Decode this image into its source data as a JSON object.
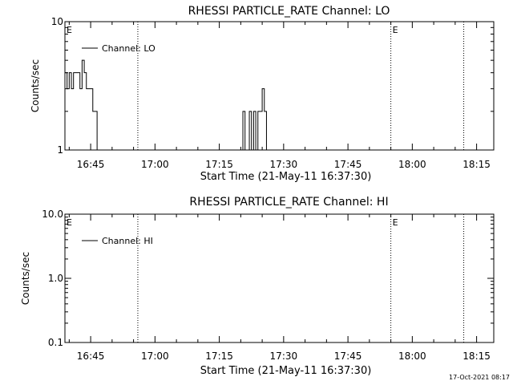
{
  "timestamp": "17-Oct-2021 08:17",
  "chart_data": [
    {
      "type": "line",
      "title": "RHESSI PARTICLE_RATE Channel: LO",
      "xlabel": "Start Time (21-May-11 16:37:30)",
      "ylabel": "Counts/sec",
      "y_scale": "log",
      "ylim": [
        1,
        10
      ],
      "y_ticks": [
        {
          "value": 1,
          "label": "1"
        },
        {
          "value": 10,
          "label": "10"
        }
      ],
      "xlim": [
        "16:39",
        "18:19"
      ],
      "x_ticks": [
        "16:45",
        "17:00",
        "17:15",
        "17:30",
        "17:45",
        "18:00",
        "18:15"
      ],
      "legend": {
        "position": "top-left",
        "label": "Channel: LO"
      },
      "event_markers": [
        {
          "time": "16:39",
          "label": "E"
        },
        {
          "time": "16:56",
          "label": ""
        },
        {
          "time": "17:55",
          "label": "E"
        },
        {
          "time": "18:12",
          "label": ""
        }
      ],
      "series": [
        {
          "name": "Channel: LO",
          "points": [
            [
              "16:39",
              4
            ],
            [
              "16:39.5",
              3
            ],
            [
              "16:40",
              4
            ],
            [
              "16:40.5",
              3
            ],
            [
              "16:41",
              4
            ],
            [
              "16:42",
              4
            ],
            [
              "16:42.5",
              3
            ],
            [
              "16:43",
              5
            ],
            [
              "16:43.5",
              4
            ],
            [
              "16:44",
              3
            ],
            [
              "16:45",
              3
            ],
            [
              "16:45.5",
              2
            ],
            [
              "16:46",
              2
            ],
            [
              "16:46.5",
              1
            ],
            [
              "17:20",
              1
            ],
            [
              "17:20.5",
              2
            ],
            [
              "17:21",
              1
            ],
            [
              "17:22",
              2
            ],
            [
              "17:22.5",
              1
            ],
            [
              "17:23",
              2
            ],
            [
              "17:23.5",
              1
            ],
            [
              "17:24",
              2
            ],
            [
              "17:25",
              3
            ],
            [
              "17:25.5",
              2
            ],
            [
              "17:26",
              1
            ]
          ]
        }
      ]
    },
    {
      "type": "line",
      "title": "RHESSI PARTICLE_RATE Channel: HI",
      "xlabel": "Start Time (21-May-11 16:37:30)",
      "ylabel": "Counts/sec",
      "y_scale": "log",
      "ylim": [
        0.1,
        10
      ],
      "y_ticks": [
        {
          "value": 0.1,
          "label": "0.1"
        },
        {
          "value": 1,
          "label": "1.0"
        },
        {
          "value": 10,
          "label": "10.0"
        }
      ],
      "xlim": [
        "16:39",
        "18:19"
      ],
      "x_ticks": [
        "16:45",
        "17:00",
        "17:15",
        "17:30",
        "17:45",
        "18:00",
        "18:15"
      ],
      "legend": {
        "position": "top-left",
        "label": "Channel: HI"
      },
      "event_markers": [
        {
          "time": "16:39",
          "label": "E"
        },
        {
          "time": "16:56",
          "label": ""
        },
        {
          "time": "17:55",
          "label": "E"
        },
        {
          "time": "18:12",
          "label": ""
        }
      ],
      "series": [
        {
          "name": "Channel: HI",
          "points": []
        }
      ]
    }
  ]
}
